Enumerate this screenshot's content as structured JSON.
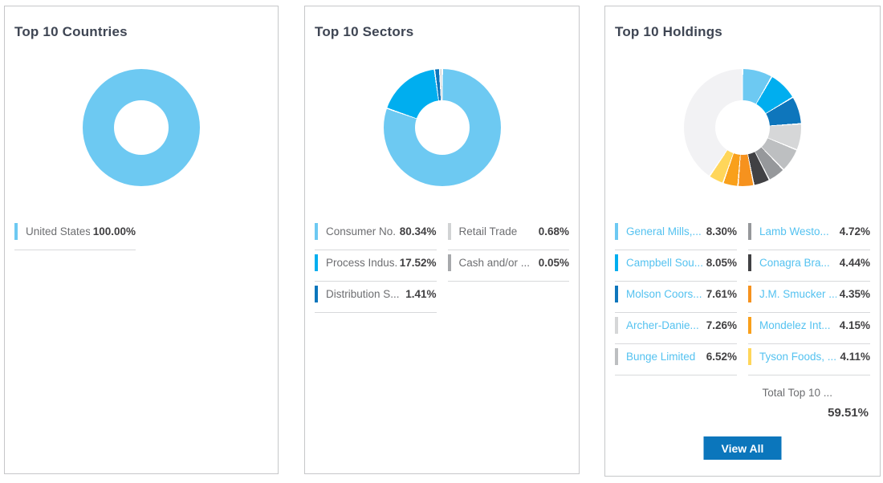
{
  "colors": {
    "accent_blue": "#0b76bc",
    "link_blue": "#54c2f0",
    "title_color": "#3e4553",
    "label_gray": "#6d6e71",
    "value_dark": "#414042"
  },
  "panels": [
    {
      "title": "Top 10 Countries",
      "legend": {
        "columns": [
          [
            {
              "label": "United States",
              "value": "100.00%",
              "color": "#6dc9f2"
            }
          ]
        ]
      },
      "legend_links": false
    },
    {
      "title": "Top 10 Sectors",
      "legend": {
        "columns": [
          [
            {
              "label": "Consumer No...",
              "value": "80.34%",
              "color": "#6dc9f2"
            },
            {
              "label": "Process Indus...",
              "value": "17.52%",
              "color": "#00aeef"
            },
            {
              "label": "Distribution S...",
              "value": "1.41%",
              "color": "#0b76bc"
            }
          ],
          [
            {
              "label": "Retail Trade",
              "value": "0.68%",
              "color": "#d1d3d4"
            },
            {
              "label": "Cash and/or ...",
              "value": "0.05%",
              "color": "#a7a9ac"
            }
          ]
        ]
      },
      "legend_links": false
    },
    {
      "title": "Top 10 Holdings",
      "legend": {
        "columns": [
          [
            {
              "label": "General Mills,...",
              "value": "8.30%",
              "color": "#6dc9f2"
            },
            {
              "label": "Campbell Sou...",
              "value": "8.05%",
              "color": "#00aeef"
            },
            {
              "label": "Molson Coors...",
              "value": "7.61%",
              "color": "#0e76bc"
            },
            {
              "label": "Archer-Danie...",
              "value": "7.26%",
              "color": "#d6d7d8"
            },
            {
              "label": "Bunge Limited",
              "value": "6.52%",
              "color": "#bdbfc1"
            }
          ],
          [
            {
              "label": "Lamb Westo...",
              "value": "4.72%",
              "color": "#96989b"
            },
            {
              "label": "Conagra Bra...",
              "value": "4.44%",
              "color": "#414144"
            },
            {
              "label": "J.M. Smucker ...",
              "value": "4.35%",
              "color": "#f6921e"
            },
            {
              "label": "Mondelez Int...",
              "value": "4.15%",
              "color": "#f9a01b"
            },
            {
              "label": "Tyson Foods, ...",
              "value": "4.11%",
              "color": "#ffd65a"
            }
          ]
        ]
      },
      "legend_links": true,
      "total_label": "Total Top 10 ...",
      "total_value": "59.51%",
      "view_all_label": "View All"
    }
  ],
  "chart_data": [
    {
      "type": "donut",
      "title": "Top 10 Countries",
      "legend_position": "bottom-left",
      "segments": [
        {
          "label": "United States",
          "value": 100.0,
          "color": "#6dc9f2"
        }
      ]
    },
    {
      "type": "donut",
      "title": "Top 10 Sectors",
      "legend_position": "bottom-two-columns",
      "segments": [
        {
          "label": "Consumer No...",
          "value": 80.34,
          "color": "#6dc9f2"
        },
        {
          "label": "Process Indus...",
          "value": 17.52,
          "color": "#00aeef"
        },
        {
          "label": "Distribution S...",
          "value": 1.41,
          "color": "#0b76bc"
        },
        {
          "label": "Retail Trade",
          "value": 0.68,
          "color": "#d1d3d4"
        },
        {
          "label": "Cash and/or ...",
          "value": 0.05,
          "color": "#a7a9ac"
        }
      ]
    },
    {
      "type": "donut",
      "title": "Top 10 Holdings",
      "legend_position": "bottom-two-columns",
      "total_top_10": 59.51,
      "segments": [
        {
          "label": "General Mills,...",
          "value": 8.3,
          "color": "#6dc9f2"
        },
        {
          "label": "Campbell Sou...",
          "value": 8.05,
          "color": "#00aeef"
        },
        {
          "label": "Molson Coors...",
          "value": 7.61,
          "color": "#0e76bc"
        },
        {
          "label": "Archer-Danie...",
          "value": 7.26,
          "color": "#d6d7d8"
        },
        {
          "label": "Bunge Limited",
          "value": 6.52,
          "color": "#bdbfc1"
        },
        {
          "label": "Lamb Westo...",
          "value": 4.72,
          "color": "#96989b"
        },
        {
          "label": "Conagra Bra...",
          "value": 4.44,
          "color": "#414144"
        },
        {
          "label": "J.M. Smucker ...",
          "value": 4.35,
          "color": "#f6921e"
        },
        {
          "label": "Mondelez Int...",
          "value": 4.15,
          "color": "#f9a01b"
        },
        {
          "label": "Tyson Foods, ...",
          "value": 4.11,
          "color": "#ffd65a"
        },
        {
          "label": "",
          "value": 40.49,
          "color": "#f2f2f4"
        }
      ]
    }
  ]
}
